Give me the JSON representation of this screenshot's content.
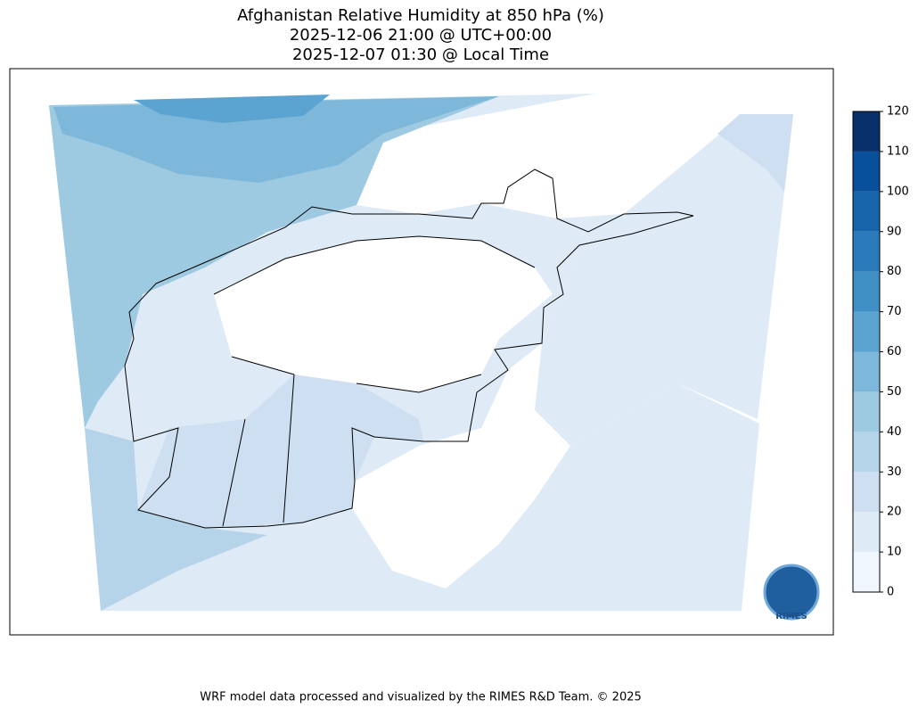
{
  "title": [
    "Afghanistan Relative Humidity at 850 hPa (%)",
    "2025-12-06 21:00 @ UTC+00:00",
    "2025-12-07 01:30 @ Local Time"
  ],
  "colorbar": {
    "ticks": [
      0,
      10,
      20,
      30,
      40,
      50,
      60,
      70,
      80,
      90,
      100,
      110,
      120
    ],
    "colors": [
      "#f0f6fd",
      "#deebf7",
      "#cddff1",
      "#b6d4e9",
      "#9ecae1",
      "#7db8da",
      "#5ba3d0",
      "#3f8fc5",
      "#2b7bba",
      "#1764ab",
      "#08509b",
      "#08306b"
    ]
  },
  "logo": "RIMES",
  "footer": "WRF model data processed and visualized by the RIMES R&D Team. © 2025"
}
